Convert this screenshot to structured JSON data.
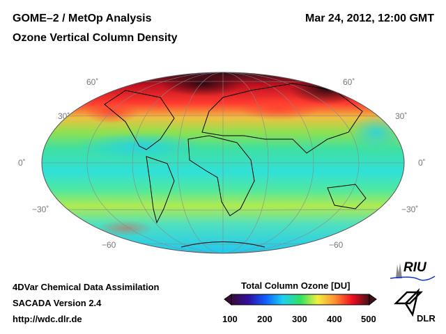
{
  "header": {
    "title": "GOME–2 / MetOp Analysis",
    "subtitle": "Ozone Vertical Column Density",
    "datetime": "Mar 24, 2012, 12:00 GMT"
  },
  "map": {
    "projection": "Hammer-Aitoff",
    "lat_labels_left": [
      "60˚",
      "30˚",
      "0˚",
      "−30˚",
      "−60"
    ],
    "lat_labels_right": [
      "60˚",
      "30˚",
      "0˚",
      "−30˚",
      "−60"
    ]
  },
  "footer": {
    "line1": "4DVar Chemical Data Assimilation",
    "line2": "SACADA Version 2.4",
    "line3": "http://wdc.dlr.de"
  },
  "colorbar": {
    "title": "Total Column Ozone [DU]",
    "ticks": [
      "100",
      "200",
      "300",
      "400",
      "500"
    ],
    "min": 100,
    "max": 500,
    "colors": [
      "#3a0a3a",
      "#3010a0",
      "#1060ff",
      "#20d0f0",
      "#30e060",
      "#f0f040",
      "#ff9030",
      "#f01020",
      "#401018"
    ]
  },
  "logos": {
    "riu": "RIU",
    "dlr": "DLR"
  }
}
